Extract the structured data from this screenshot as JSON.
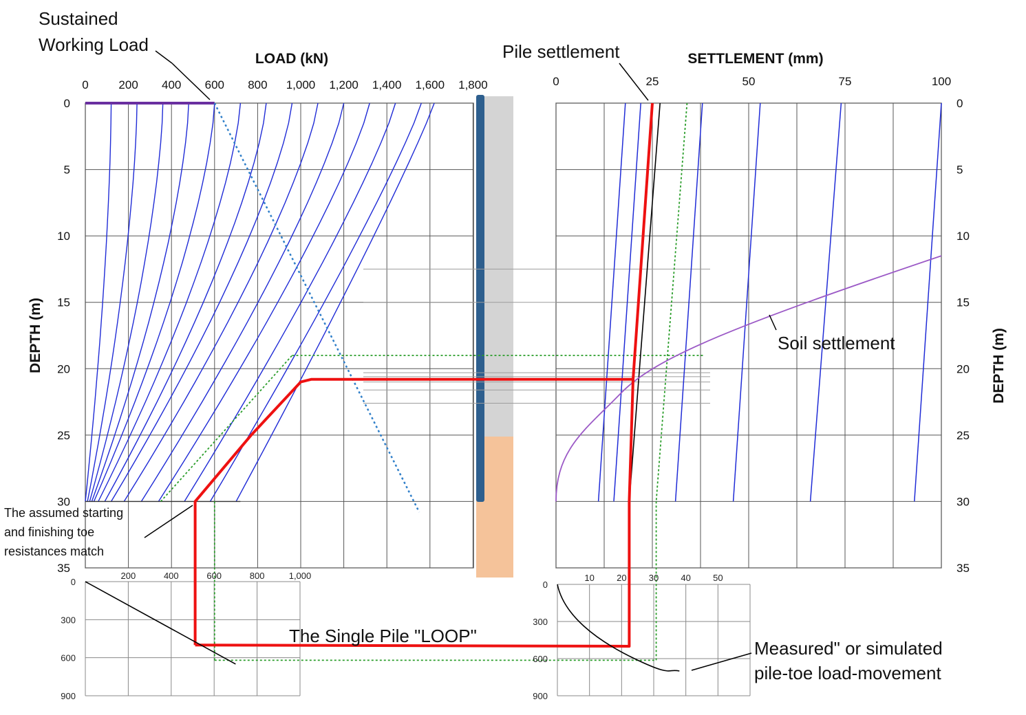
{
  "colors": {
    "load_curves": "#1f2bd6",
    "loop": "#ee1111",
    "toe_curve": "#000000",
    "working_load_line": "#6a2fa0",
    "neutral_plane_line": "#2f7fc9",
    "green_guides": "#2a9d2a",
    "soil_settlement": "#9b59c6",
    "pile_bar": "#2e5f8e",
    "upper_soil": "#d4d4d4",
    "lower_soil": "#f5c39a",
    "gridline": "#555555"
  },
  "annotations": {
    "sustained_working_load_1": "Sustained",
    "sustained_working_load_2": "Working Load",
    "pile_settlement": "Pile settlement",
    "soil_settlement": "Soil settlement",
    "assumed_toe_1": "The assumed starting",
    "assumed_toe_2": "and finishing toe",
    "assumed_toe_3": "resistances match",
    "single_pile_loop": "The Single Pile \"LOOP\"",
    "measured_toe_1": "Measured\" or simulated",
    "measured_toe_2": "pile-toe load-movement"
  },
  "chart_data": [
    {
      "id": "load_vs_depth",
      "type": "line",
      "title": "LOAD (kN)",
      "xlabel": "LOAD (kN)",
      "ylabel": "DEPTH (m)",
      "x_ticks": [
        "0",
        "200",
        "400",
        "600",
        "800",
        "1,000",
        "1,200",
        "1,400",
        "1,600",
        "1,800"
      ],
      "y_ticks": [
        "0",
        "5",
        "10",
        "15",
        "20",
        "25",
        "30",
        "35"
      ],
      "xlim": [
        0,
        1800
      ],
      "ylim": [
        35,
        0
      ],
      "grid": true,
      "load_curve_heads": [
        120,
        240,
        360,
        480,
        600,
        720,
        840,
        960,
        1080,
        1200,
        1320,
        1440,
        1560,
        1620
      ],
      "load_curve_toes": [
        0,
        10,
        20,
        30,
        40,
        60,
        90,
        120,
        180,
        260,
        340,
        460,
        580,
        700
      ],
      "working_load_line": {
        "x": [
          0,
          600
        ],
        "y": [
          0,
          0
        ]
      },
      "neutral_plane_line": {
        "x": [
          600,
          1550
        ],
        "y": [
          0,
          30.8
        ]
      },
      "loop_red": {
        "x": [
          510,
          770,
          1000,
          1050,
          1050
        ],
        "y": [
          30,
          25,
          21,
          20.8,
          20.8
        ]
      },
      "green_guide": {
        "x": [
          350,
          960,
          960
        ],
        "y": [
          30,
          19,
          19
        ]
      }
    },
    {
      "id": "settlement_vs_depth",
      "type": "line",
      "title": "SETTLEMENT (mm)",
      "xlabel": "SETTLEMENT (mm)",
      "ylabel": "DEPTH (m)",
      "x_ticks": [
        "0",
        "25",
        "50",
        "75",
        "100"
      ],
      "y_ticks": [
        "0",
        "5",
        "10",
        "15",
        "20",
        "25",
        "30",
        "35"
      ],
      "xlim": [
        0,
        100
      ],
      "ylim": [
        35,
        0
      ],
      "grid": true,
      "pile_settlement": {
        "x": [
          25,
          20,
          19,
          19
        ],
        "y": [
          0,
          20.8,
          30,
          35
        ]
      },
      "black_line": {
        "x": [
          27,
          19
        ],
        "y": [
          0,
          30
        ]
      },
      "soil_settlement": {
        "x": [
          0,
          5,
          12,
          21,
          30,
          48,
          68,
          100
        ],
        "y": [
          30,
          26,
          24,
          20,
          18.5,
          16.5,
          14,
          11.5
        ]
      },
      "blue_isolines_top": [
        18,
        22,
        38,
        53,
        74,
        100
      ],
      "blue_isolines_bottom": [
        11,
        15,
        31,
        46,
        66,
        93
      ],
      "green_guide_x": 34
    },
    {
      "id": "toe_load_movement_left",
      "type": "line",
      "x_ticks": [
        "200",
        "400",
        "600",
        "800",
        "1,000"
      ],
      "y_ticks": [
        "0",
        "300",
        "600",
        "900"
      ],
      "xlim": [
        0,
        1000
      ],
      "ylim": [
        900,
        0
      ],
      "toe_curve": {
        "x": [
          0,
          700
        ],
        "y": [
          0,
          650
        ]
      },
      "loop_red": {
        "x": [
          510,
          510
        ],
        "y": [
          0,
          500
        ]
      }
    },
    {
      "id": "toe_load_movement_right",
      "type": "line",
      "x_ticks": [
        "10",
        "20",
        "30",
        "40",
        "50"
      ],
      "y_ticks": [
        "0",
        "300",
        "600",
        "900"
      ],
      "xlim": [
        0,
        60
      ],
      "ylim": [
        900,
        0
      ],
      "toe_curve": {
        "x": [
          0,
          2,
          6,
          12,
          18,
          24,
          36
        ],
        "y": [
          0,
          150,
          300,
          430,
          520,
          600,
          680
        ]
      },
      "loop_red": {
        "x": [
          16,
          16
        ],
        "y": [
          0,
          500
        ]
      }
    }
  ]
}
